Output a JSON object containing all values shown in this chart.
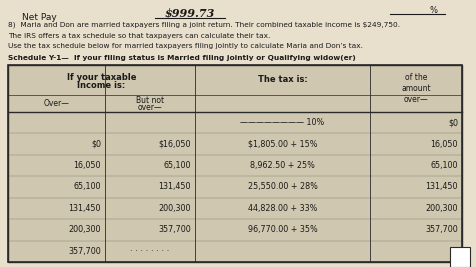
{
  "net_pay_label": "Net Pay",
  "net_pay_value": "$999.73",
  "net_pay_superscript": "%",
  "paragraph_line1": "8)  Maria and Don are married taxpayers filing a joint return. Their combined taxable income is $249,750.",
  "paragraph_line2": "The IRS offers a tax schedule so that taxpayers can calculate their tax.",
  "paragraph_line3": "Use the tax schedule below for married taxpayers filing jointly to calculate Maria and Don’s tax.",
  "schedule_title": "Schedule Y-1—  If your filing status is Married filing jointly or Qualifying widow(er)",
  "col_header_left1": "If your taxable",
  "col_header_left2": "Income is:",
  "col_header_center": "The tax is:",
  "col_header_right": "of the\namount\nover—",
  "col_over": "Over—",
  "col_but_not1": "But not",
  "col_but_not2": "over—",
  "rows": [
    {
      "over": "",
      "but_not": "",
      "tax": "———————— 10%",
      "of_amount": "$0"
    },
    {
      "over": "$0",
      "but_not": "$16,050",
      "tax": "$1,805.00 + 15%",
      "of_amount": "16,050"
    },
    {
      "over": "16,050",
      "but_not": "65,100",
      "tax": "8,962.50 + 25%",
      "of_amount": "65,100"
    },
    {
      "over": "65,100",
      "but_not": "131,450",
      "tax": "25,550.00 + 28%",
      "of_amount": "131,450"
    },
    {
      "over": "131,450",
      "but_not": "200,300",
      "tax": "44,828.00 + 33%",
      "of_amount": "200,300"
    },
    {
      "over": "200,300",
      "but_not": "357,700",
      "tax": "96,770.00 + 35%",
      "of_amount": "357,700"
    },
    {
      "over": "357,700",
      "but_not": "········",
      "tax": "",
      "of_amount": ""
    }
  ],
  "paper_color": "#e8e0cc",
  "table_bg": "#cfc7b0",
  "text_color": "#1a1a1a",
  "border_color": "#2a2a2a",
  "header_bg": "#b8b0a0"
}
